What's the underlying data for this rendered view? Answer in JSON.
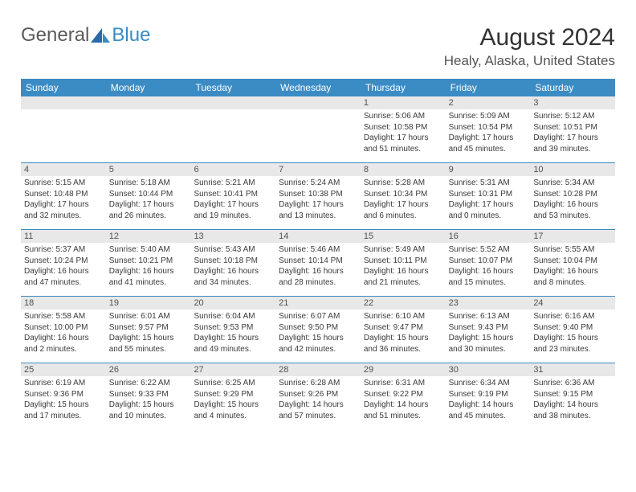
{
  "logo": {
    "text1": "General",
    "text2": "Blue",
    "color1": "#808080",
    "color2": "#3b8bc4"
  },
  "title": "August 2024",
  "location": "Healy, Alaska, United States",
  "header_bg": "#3b8bc4",
  "daynum_bg": "#e8e8e8",
  "border_color": "#3b8bc4",
  "day_names": [
    "Sunday",
    "Monday",
    "Tuesday",
    "Wednesday",
    "Thursday",
    "Friday",
    "Saturday"
  ],
  "weeks": [
    [
      {
        "num": "",
        "sunrise": "",
        "sunset": "",
        "daylight": ""
      },
      {
        "num": "",
        "sunrise": "",
        "sunset": "",
        "daylight": ""
      },
      {
        "num": "",
        "sunrise": "",
        "sunset": "",
        "daylight": ""
      },
      {
        "num": "",
        "sunrise": "",
        "sunset": "",
        "daylight": ""
      },
      {
        "num": "1",
        "sunrise": "Sunrise: 5:06 AM",
        "sunset": "Sunset: 10:58 PM",
        "daylight": "Daylight: 17 hours and 51 minutes."
      },
      {
        "num": "2",
        "sunrise": "Sunrise: 5:09 AM",
        "sunset": "Sunset: 10:54 PM",
        "daylight": "Daylight: 17 hours and 45 minutes."
      },
      {
        "num": "3",
        "sunrise": "Sunrise: 5:12 AM",
        "sunset": "Sunset: 10:51 PM",
        "daylight": "Daylight: 17 hours and 39 minutes."
      }
    ],
    [
      {
        "num": "4",
        "sunrise": "Sunrise: 5:15 AM",
        "sunset": "Sunset: 10:48 PM",
        "daylight": "Daylight: 17 hours and 32 minutes."
      },
      {
        "num": "5",
        "sunrise": "Sunrise: 5:18 AM",
        "sunset": "Sunset: 10:44 PM",
        "daylight": "Daylight: 17 hours and 26 minutes."
      },
      {
        "num": "6",
        "sunrise": "Sunrise: 5:21 AM",
        "sunset": "Sunset: 10:41 PM",
        "daylight": "Daylight: 17 hours and 19 minutes."
      },
      {
        "num": "7",
        "sunrise": "Sunrise: 5:24 AM",
        "sunset": "Sunset: 10:38 PM",
        "daylight": "Daylight: 17 hours and 13 minutes."
      },
      {
        "num": "8",
        "sunrise": "Sunrise: 5:28 AM",
        "sunset": "Sunset: 10:34 PM",
        "daylight": "Daylight: 17 hours and 6 minutes."
      },
      {
        "num": "9",
        "sunrise": "Sunrise: 5:31 AM",
        "sunset": "Sunset: 10:31 PM",
        "daylight": "Daylight: 17 hours and 0 minutes."
      },
      {
        "num": "10",
        "sunrise": "Sunrise: 5:34 AM",
        "sunset": "Sunset: 10:28 PM",
        "daylight": "Daylight: 16 hours and 53 minutes."
      }
    ],
    [
      {
        "num": "11",
        "sunrise": "Sunrise: 5:37 AM",
        "sunset": "Sunset: 10:24 PM",
        "daylight": "Daylight: 16 hours and 47 minutes."
      },
      {
        "num": "12",
        "sunrise": "Sunrise: 5:40 AM",
        "sunset": "Sunset: 10:21 PM",
        "daylight": "Daylight: 16 hours and 41 minutes."
      },
      {
        "num": "13",
        "sunrise": "Sunrise: 5:43 AM",
        "sunset": "Sunset: 10:18 PM",
        "daylight": "Daylight: 16 hours and 34 minutes."
      },
      {
        "num": "14",
        "sunrise": "Sunrise: 5:46 AM",
        "sunset": "Sunset: 10:14 PM",
        "daylight": "Daylight: 16 hours and 28 minutes."
      },
      {
        "num": "15",
        "sunrise": "Sunrise: 5:49 AM",
        "sunset": "Sunset: 10:11 PM",
        "daylight": "Daylight: 16 hours and 21 minutes."
      },
      {
        "num": "16",
        "sunrise": "Sunrise: 5:52 AM",
        "sunset": "Sunset: 10:07 PM",
        "daylight": "Daylight: 16 hours and 15 minutes."
      },
      {
        "num": "17",
        "sunrise": "Sunrise: 5:55 AM",
        "sunset": "Sunset: 10:04 PM",
        "daylight": "Daylight: 16 hours and 8 minutes."
      }
    ],
    [
      {
        "num": "18",
        "sunrise": "Sunrise: 5:58 AM",
        "sunset": "Sunset: 10:00 PM",
        "daylight": "Daylight: 16 hours and 2 minutes."
      },
      {
        "num": "19",
        "sunrise": "Sunrise: 6:01 AM",
        "sunset": "Sunset: 9:57 PM",
        "daylight": "Daylight: 15 hours and 55 minutes."
      },
      {
        "num": "20",
        "sunrise": "Sunrise: 6:04 AM",
        "sunset": "Sunset: 9:53 PM",
        "daylight": "Daylight: 15 hours and 49 minutes."
      },
      {
        "num": "21",
        "sunrise": "Sunrise: 6:07 AM",
        "sunset": "Sunset: 9:50 PM",
        "daylight": "Daylight: 15 hours and 42 minutes."
      },
      {
        "num": "22",
        "sunrise": "Sunrise: 6:10 AM",
        "sunset": "Sunset: 9:47 PM",
        "daylight": "Daylight: 15 hours and 36 minutes."
      },
      {
        "num": "23",
        "sunrise": "Sunrise: 6:13 AM",
        "sunset": "Sunset: 9:43 PM",
        "daylight": "Daylight: 15 hours and 30 minutes."
      },
      {
        "num": "24",
        "sunrise": "Sunrise: 6:16 AM",
        "sunset": "Sunset: 9:40 PM",
        "daylight": "Daylight: 15 hours and 23 minutes."
      }
    ],
    [
      {
        "num": "25",
        "sunrise": "Sunrise: 6:19 AM",
        "sunset": "Sunset: 9:36 PM",
        "daylight": "Daylight: 15 hours and 17 minutes."
      },
      {
        "num": "26",
        "sunrise": "Sunrise: 6:22 AM",
        "sunset": "Sunset: 9:33 PM",
        "daylight": "Daylight: 15 hours and 10 minutes."
      },
      {
        "num": "27",
        "sunrise": "Sunrise: 6:25 AM",
        "sunset": "Sunset: 9:29 PM",
        "daylight": "Daylight: 15 hours and 4 minutes."
      },
      {
        "num": "28",
        "sunrise": "Sunrise: 6:28 AM",
        "sunset": "Sunset: 9:26 PM",
        "daylight": "Daylight: 14 hours and 57 minutes."
      },
      {
        "num": "29",
        "sunrise": "Sunrise: 6:31 AM",
        "sunset": "Sunset: 9:22 PM",
        "daylight": "Daylight: 14 hours and 51 minutes."
      },
      {
        "num": "30",
        "sunrise": "Sunrise: 6:34 AM",
        "sunset": "Sunset: 9:19 PM",
        "daylight": "Daylight: 14 hours and 45 minutes."
      },
      {
        "num": "31",
        "sunrise": "Sunrise: 6:36 AM",
        "sunset": "Sunset: 9:15 PM",
        "daylight": "Daylight: 14 hours and 38 minutes."
      }
    ]
  ]
}
